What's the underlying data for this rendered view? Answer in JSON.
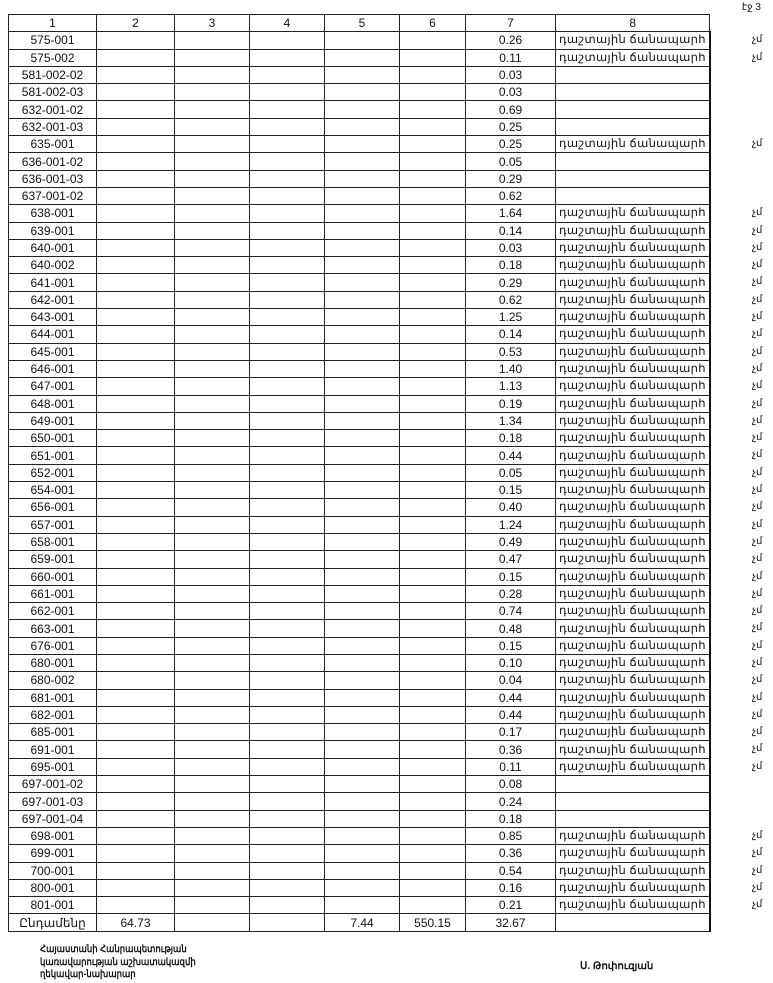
{
  "page_label": "էջ 3",
  "columns": [
    "1",
    "2",
    "3",
    "4",
    "5",
    "6",
    "7",
    "8"
  ],
  "rows": [
    [
      "575-001",
      "0.26",
      "դաշտային ճանապարհ",
      "չմ"
    ],
    [
      "575-002",
      "0.11",
      "դաշտային ճանապարհ",
      "չմ"
    ],
    [
      "581-002-02",
      "0.03",
      "",
      ""
    ],
    [
      "581-002-03",
      "0.03",
      "",
      ""
    ],
    [
      "632-001-02",
      "0.69",
      "",
      ""
    ],
    [
      "632-001-03",
      "0.25",
      "",
      ""
    ],
    [
      "635-001",
      "0.25",
      "դաշտային ճանապարհ",
      "չմ"
    ],
    [
      "636-001-02",
      "0.05",
      "",
      ""
    ],
    [
      "636-001-03",
      "0.29",
      "",
      ""
    ],
    [
      "637-001-02",
      "0.62",
      "",
      ""
    ],
    [
      "638-001",
      "1.64",
      "դաշտային ճանապարհ",
      "չմ"
    ],
    [
      "639-001",
      "0.14",
      "դաշտային ճանապարհ",
      "չմ"
    ],
    [
      "640-001",
      "0.03",
      "դաշտային ճանապարհ",
      "չմ"
    ],
    [
      "640-002",
      "0.18",
      "դաշտային ճանապարհ",
      "չմ"
    ],
    [
      "641-001",
      "0.29",
      "դաշտային ճանապարհ",
      "չմ"
    ],
    [
      "642-001",
      "0.62",
      "դաշտային ճանապարհ",
      "չմ"
    ],
    [
      "643-001",
      "1.25",
      "դաշտային ճանապարհ",
      "չմ"
    ],
    [
      "644-001",
      "0.14",
      "դաշտային ճանապարհ",
      "չմ"
    ],
    [
      "645-001",
      "0.53",
      "դաշտային ճանապարհ",
      "չմ"
    ],
    [
      "646-001",
      "1.40",
      "դաշտային ճանապարհ",
      "չմ"
    ],
    [
      "647-001",
      "1.13",
      "դաշտային ճանապարհ",
      "չմ"
    ],
    [
      "648-001",
      "0.19",
      "դաշտային ճանապարհ",
      "չմ"
    ],
    [
      "649-001",
      "1.34",
      "դաշտային ճանապարհ",
      "չմ"
    ],
    [
      "650-001",
      "0.18",
      "դաշտային ճանապարհ",
      "չմ"
    ],
    [
      "651-001",
      "0.44",
      "դաշտային ճանապարհ",
      "չմ"
    ],
    [
      "652-001",
      "0.05",
      "դաշտային ճանապարհ",
      "չմ"
    ],
    [
      "654-001",
      "0.15",
      "դաշտային ճանապարհ",
      "չմ"
    ],
    [
      "656-001",
      "0.40",
      "դաշտային ճանապարհ",
      "չմ"
    ],
    [
      "657-001",
      "1.24",
      "դաշտային ճանապարհ",
      "չմ"
    ],
    [
      "658-001",
      "0.49",
      "դաշտային ճանապարհ",
      "չմ"
    ],
    [
      "659-001",
      "0.47",
      "դաշտային ճանապարհ",
      "չմ"
    ],
    [
      "660-001",
      "0.15",
      "դաշտային ճանապարհ",
      "չմ"
    ],
    [
      "661-001",
      "0.28",
      "դաշտային ճանապարհ",
      "չմ"
    ],
    [
      "662-001",
      "0.74",
      "դաշտային ճանապարհ",
      "չմ"
    ],
    [
      "663-001",
      "0.48",
      "դաշտային ճանապարհ",
      "չմ"
    ],
    [
      "676-001",
      "0.15",
      "դաշտային ճանապարհ",
      "չմ"
    ],
    [
      "680-001",
      "0.10",
      "դաշտային ճանապարհ",
      "չմ"
    ],
    [
      "680-002",
      "0.04",
      "դաշտային ճանապարհ",
      "չմ"
    ],
    [
      "681-001",
      "0.44",
      "դաշտային ճանապարհ",
      "չմ"
    ],
    [
      "682-001",
      "0.44",
      "դաշտային ճանապարհ",
      "չմ"
    ],
    [
      "685-001",
      "0.17",
      "դաշտային ճանապարհ",
      "չմ"
    ],
    [
      "691-001",
      "0.36",
      "դաշտային ճանապարհ",
      "չմ"
    ],
    [
      "695-001",
      "0.11",
      "դաշտային ճանապարհ",
      "չմ"
    ],
    [
      "697-001-02",
      "0.08",
      "",
      ""
    ],
    [
      "697-001-03",
      "0.24",
      "",
      ""
    ],
    [
      "697-001-04",
      "0.18",
      "",
      ""
    ],
    [
      "698-001",
      "0.85",
      "դաշտային ճանապարհ",
      "չմ"
    ],
    [
      "699-001",
      "0.36",
      "դաշտային ճանապարհ",
      "չմ"
    ],
    [
      "700-001",
      "0.54",
      "դաշտային ճանապարհ",
      "չմ"
    ],
    [
      "800-001",
      "0.16",
      "դաշտային ճանապարհ",
      "չմ"
    ],
    [
      "801-001",
      "0.21",
      "դաշտային ճանապարհ",
      "չմ"
    ]
  ],
  "total": {
    "label": "Ընդամենը",
    "c2": "64.73",
    "c3": "",
    "c4": "",
    "c5": "7.44",
    "c6": "550.15",
    "c7": "32.67",
    "c8": ""
  },
  "footer": {
    "line1": "Հայաստանի Հանրապետության",
    "line2": "կառավարության աշխատակազմի",
    "line3": "ղեկավար-նախարար",
    "signatory": "Ս. Թոփուզյան"
  }
}
